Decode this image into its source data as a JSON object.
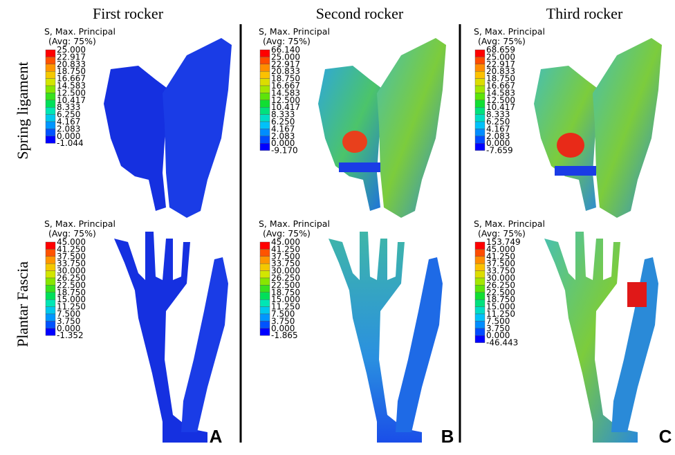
{
  "columns": [
    "First rocker",
    "Second rocker",
    "Third rocker"
  ],
  "rows": [
    "Spring ligament",
    "Plantar Fascia"
  ],
  "panels": [
    {
      "legend_title": "S, Max. Principal",
      "legend_subtitle": "(Avg: 75%)",
      "labels": [
        "25.000",
        "22.917",
        "20.833",
        "18.750",
        "16.667",
        "14.583",
        "12.500",
        "10.417",
        "8.333",
        "6.250",
        "4.167",
        "2.083",
        "0.000",
        "-1.044"
      ]
    },
    {
      "legend_title": "S, Max. Principal",
      "legend_subtitle": "(Avg: 75%)",
      "labels": [
        "66.140",
        "25.000",
        "22.917",
        "20.833",
        "18.750",
        "16.667",
        "14.583",
        "12.500",
        "10.417",
        "8.333",
        "6.250",
        "4.167",
        "2.083",
        "0.000",
        "-9.170"
      ]
    },
    {
      "legend_title": "S, Max. Principal",
      "legend_subtitle": "(Avg: 75%)",
      "labels": [
        "68.659",
        "25.000",
        "22.917",
        "20.833",
        "18.750",
        "16.667",
        "14.583",
        "12.500",
        "10.417",
        "8.333",
        "6.250",
        "4.167",
        "2.083",
        "0.000",
        "-7.659"
      ]
    },
    {
      "legend_title": "S, Max. Principal",
      "legend_subtitle": "(Avg: 75%)",
      "labels": [
        "45.000",
        "41.250",
        "37.500",
        "33.750",
        "30.000",
        "26.250",
        "22.500",
        "18.750",
        "15.000",
        "11.250",
        "7.500",
        "3.750",
        "0.000",
        "-1.352"
      ]
    },
    {
      "legend_title": "S, Max. Principal",
      "legend_subtitle": "(Avg: 75%)",
      "labels": [
        "45.000",
        "41.250",
        "37.500",
        "33.750",
        "30.000",
        "26.250",
        "22.500",
        "18.750",
        "15.000",
        "11.250",
        "7.500",
        "3.750",
        "0.000",
        "-1.865"
      ]
    },
    {
      "legend_title": "S, Max. Principal",
      "legend_subtitle": "(Avg: 75%)",
      "labels": [
        "153.749",
        "45.000",
        "41.250",
        "37.500",
        "33.750",
        "30.000",
        "26.250",
        "22.500",
        "18.750",
        "15.000",
        "11.250",
        "7.500",
        "3.750",
        "0.000",
        "-46.443"
      ]
    }
  ],
  "panel_letters": [
    "A",
    "B",
    "C"
  ]
}
